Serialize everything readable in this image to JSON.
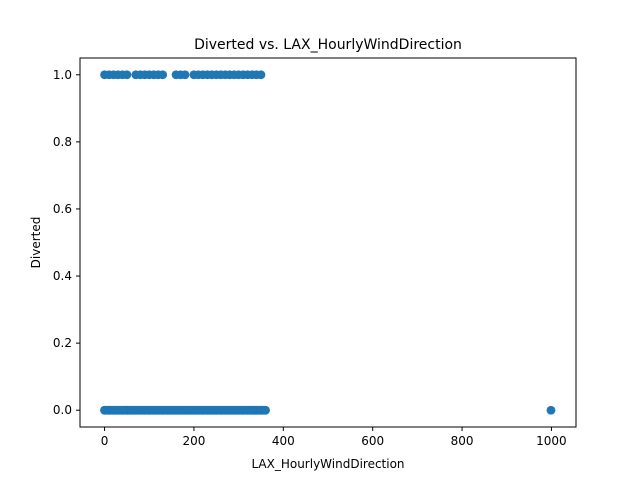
{
  "chart_data": {
    "type": "scatter",
    "title": "Diverted vs. LAX_HourlyWindDirection",
    "xlabel": "LAX_HourlyWindDirection",
    "ylabel": "Diverted",
    "xlim": [
      -55,
      1055
    ],
    "ylim": [
      -0.05,
      1.05
    ],
    "xticks": [
      0,
      200,
      400,
      600,
      800,
      1000
    ],
    "yticks": [
      0.0,
      0.2,
      0.4,
      0.6,
      0.8,
      1.0
    ],
    "xtick_labels": [
      "0",
      "200",
      "400",
      "600",
      "800",
      "1000"
    ],
    "ytick_labels": [
      "0.0",
      "0.2",
      "0.4",
      "0.6",
      "0.8",
      "1.0"
    ],
    "grid": false,
    "marker_color": "#1f77b4",
    "series": [
      {
        "x": [
          0,
          10,
          20,
          30,
          40,
          50,
          60,
          70,
          80,
          90,
          100,
          110,
          120,
          130,
          140,
          150,
          160,
          170,
          180,
          190,
          200,
          210,
          220,
          230,
          240,
          250,
          260,
          270,
          280,
          290,
          300,
          310,
          320,
          330,
          340,
          350,
          360,
          999,
          0,
          10,
          20,
          30,
          40,
          50,
          70,
          80,
          90,
          100,
          110,
          120,
          130,
          160,
          170,
          180,
          200,
          210,
          220,
          230,
          240,
          250,
          260,
          270,
          280,
          290,
          300,
          310,
          320,
          330,
          340,
          350
        ],
        "y": [
          0,
          0,
          0,
          0,
          0,
          0,
          0,
          0,
          0,
          0,
          0,
          0,
          0,
          0,
          0,
          0,
          0,
          0,
          0,
          0,
          0,
          0,
          0,
          0,
          0,
          0,
          0,
          0,
          0,
          0,
          0,
          0,
          0,
          0,
          0,
          0,
          0,
          0,
          1,
          1,
          1,
          1,
          1,
          1,
          1,
          1,
          1,
          1,
          1,
          1,
          1,
          1,
          1,
          1,
          1,
          1,
          1,
          1,
          1,
          1,
          1,
          1,
          1,
          1,
          1,
          1,
          1,
          1,
          1,
          1
        ]
      }
    ]
  }
}
